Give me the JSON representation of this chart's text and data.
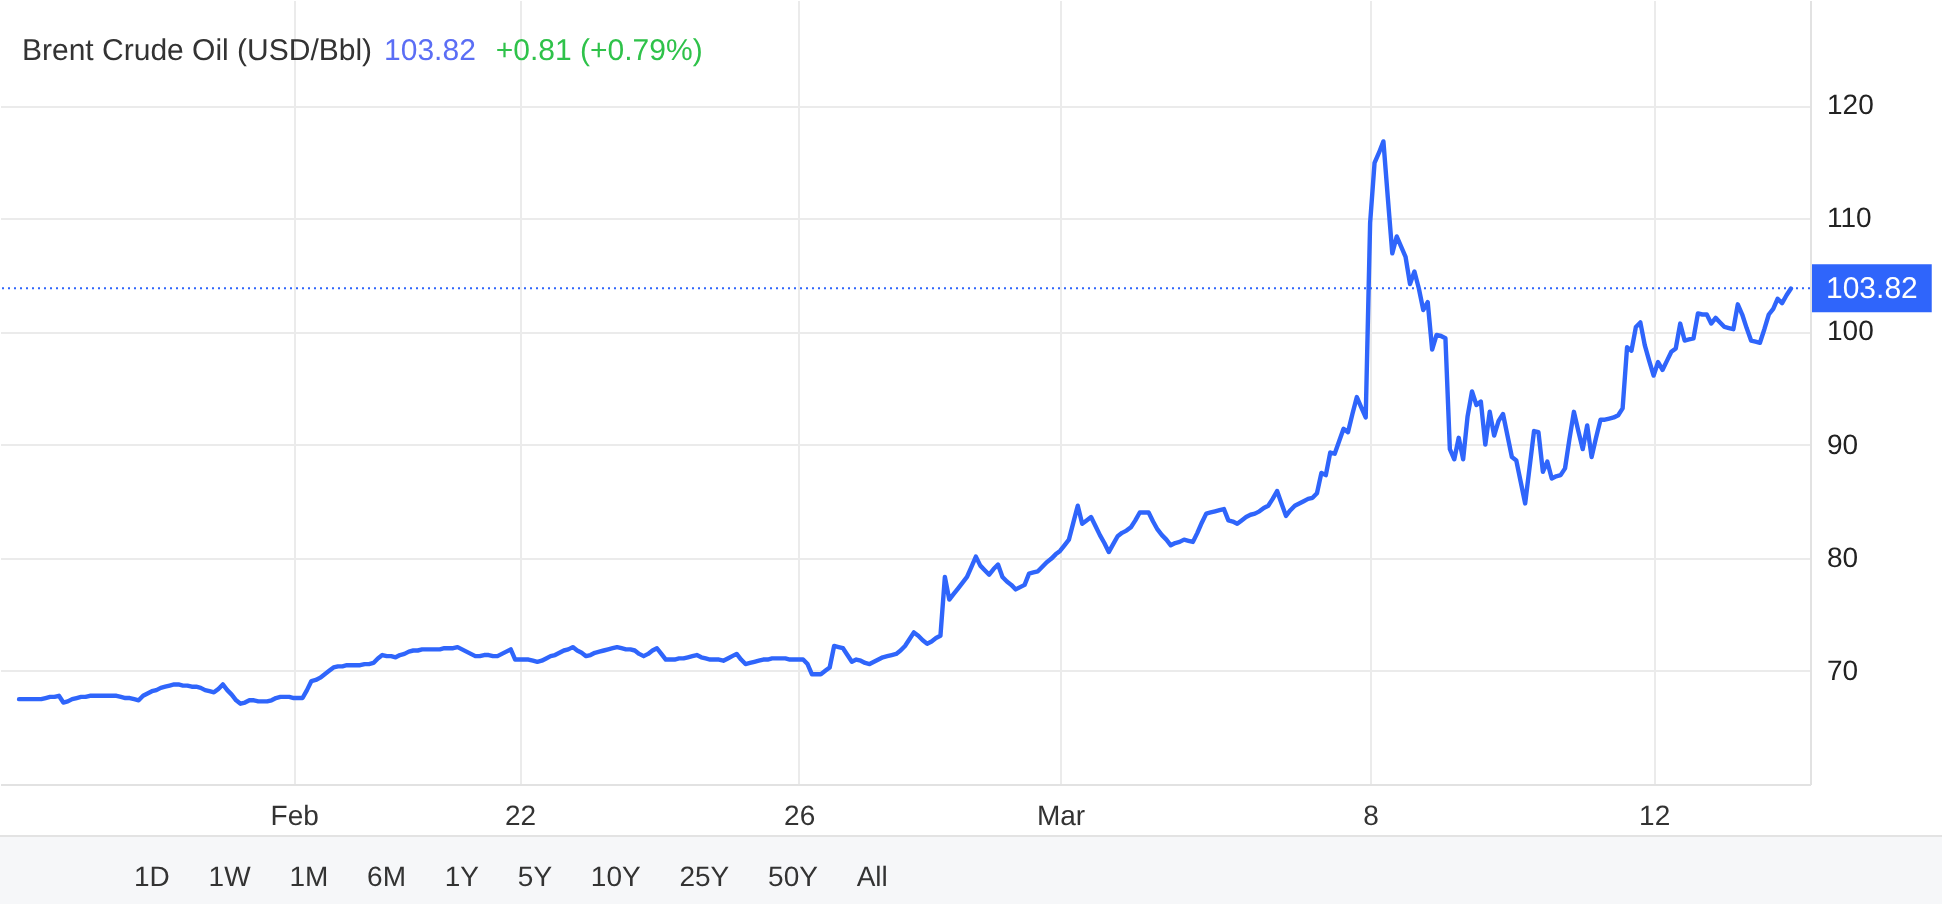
{
  "chart_data": {
    "type": "line",
    "title": "Brent Crude Oil (USD/Bbl)",
    "annotations": [
      "103.82",
      "+0.81 (+0.79%)",
      "1D",
      "1W",
      "1M",
      "6M",
      "1Y",
      "5Y",
      "10Y",
      "25Y",
      "50Y",
      "All"
    ],
    "categories": [
      null,
      null,
      null,
      null,
      null,
      null,
      null,
      null,
      null,
      null,
      null,
      null,
      null,
      null,
      null,
      null,
      null,
      null,
      null,
      null,
      null,
      null,
      null,
      null,
      null,
      null,
      null,
      null,
      null,
      null,
      null,
      null,
      null,
      null,
      null,
      null,
      null,
      null,
      null,
      null,
      null,
      null,
      null,
      null,
      null,
      null,
      null,
      null,
      null,
      null,
      null,
      null,
      null,
      null,
      null,
      null,
      null,
      null,
      null,
      null,
      null,
      null,
      "Feb",
      null,
      null,
      null,
      null,
      null,
      null,
      null,
      null,
      null,
      null,
      null,
      null,
      null,
      null,
      null,
      null,
      null,
      null,
      null,
      null,
      null,
      null,
      null,
      null,
      null,
      null,
      null,
      null,
      null,
      null,
      null,
      null,
      null,
      null,
      null,
      null,
      null,
      null,
      null,
      null,
      null,
      null,
      null,
      null,
      null,
      null,
      null,
      null,
      null,
      null,
      "22",
      null,
      null,
      null,
      null,
      null,
      null,
      null,
      null,
      null,
      null,
      null,
      null,
      null,
      null,
      null,
      null,
      null,
      null,
      null,
      null,
      null,
      null,
      null,
      null,
      null,
      null,
      null,
      null,
      null,
      null,
      null,
      null,
      null,
      null,
      null,
      null,
      null,
      null,
      null,
      null,
      null,
      null,
      null,
      null,
      null,
      null,
      null,
      null,
      null,
      null,
      null,
      null,
      null,
      null,
      null,
      null,
      null,
      null,
      null,
      null,
      null,
      null,
      "26",
      null,
      null,
      null,
      null,
      null,
      null,
      null,
      null,
      null,
      null,
      null,
      null,
      null,
      null,
      null,
      null,
      null,
      null,
      null,
      null,
      null,
      null,
      null,
      null,
      null,
      null,
      null,
      null,
      null,
      null,
      null,
      null,
      null,
      null,
      null,
      null,
      null,
      null,
      null,
      null,
      null,
      null,
      null,
      null,
      null,
      null,
      null,
      null,
      null,
      null,
      null,
      null,
      null,
      null,
      null,
      null,
      null,
      null,
      "Mar",
      null,
      null,
      null,
      null,
      null,
      null,
      null,
      null,
      null,
      null,
      null,
      null,
      null,
      null,
      null,
      null,
      null,
      null,
      null,
      null,
      null,
      null,
      null,
      null,
      null,
      null,
      null,
      null,
      null,
      null,
      null,
      null,
      null,
      null,
      null,
      null,
      null,
      null,
      null,
      null,
      null,
      null,
      null,
      null,
      null,
      null,
      null,
      null,
      null,
      null,
      null,
      null,
      null,
      null,
      null,
      null,
      null,
      null,
      null,
      null,
      null,
      null,
      null,
      null,
      null,
      null,
      null,
      null,
      null,
      "8",
      null,
      null,
      null,
      null,
      null,
      null,
      null,
      null,
      null,
      null,
      null,
      null,
      null,
      null,
      null,
      null,
      null,
      null,
      null,
      null,
      null,
      null,
      null,
      null,
      null,
      null,
      null,
      null,
      null,
      null,
      null,
      null,
      null,
      null,
      null,
      null,
      null,
      null,
      null,
      null,
      null,
      null,
      null,
      null,
      null,
      null,
      null,
      null,
      null,
      null,
      null,
      null,
      null,
      null,
      null,
      null,
      null,
      null,
      null,
      null,
      null,
      null,
      null,
      "12",
      null,
      null,
      null,
      null,
      null,
      null,
      null,
      null,
      null,
      null,
      null,
      null,
      null,
      null,
      null,
      null,
      null,
      null,
      null,
      null,
      null,
      null,
      null,
      null,
      null,
      null,
      null,
      null,
      null,
      null,
      null
    ],
    "series": [
      {
        "color": "#2f65fb",
        "values": [
          67.5,
          67.5,
          67.5,
          67.5,
          67.5,
          67.5,
          67.6,
          67.7,
          67.7,
          67.8,
          67.2,
          67.3,
          67.5,
          67.6,
          67.7,
          67.7,
          67.8,
          67.8,
          67.8,
          67.8,
          67.8,
          67.8,
          67.8,
          67.7,
          67.6,
          67.6,
          67.5,
          67.4,
          67.8,
          68.0,
          68.2,
          68.3,
          68.5,
          68.6,
          68.7,
          68.8,
          68.8,
          68.7,
          68.7,
          68.6,
          68.6,
          68.5,
          68.3,
          68.2,
          68.1,
          68.4,
          68.8,
          68.3,
          67.9,
          67.4,
          67.1,
          67.2,
          67.4,
          67.4,
          67.3,
          67.3,
          67.3,
          67.4,
          67.6,
          67.7,
          67.7,
          67.7,
          67.6,
          67.6,
          67.6,
          68.3,
          69.1,
          69.2,
          69.4,
          69.7,
          70.0,
          70.3,
          70.4,
          70.4,
          70.5,
          70.5,
          70.5,
          70.5,
          70.6,
          70.6,
          70.7,
          71.1,
          71.4,
          71.3,
          71.3,
          71.2,
          71.4,
          71.5,
          71.7,
          71.8,
          71.8,
          71.9,
          71.9,
          71.9,
          71.9,
          71.9,
          72.0,
          72.0,
          72.0,
          72.1,
          71.9,
          71.7,
          71.5,
          71.3,
          71.3,
          71.4,
          71.4,
          71.3,
          71.3,
          71.5,
          71.7,
          71.9,
          71.0,
          71.0,
          71.0,
          71.0,
          70.9,
          70.8,
          70.9,
          71.1,
          71.3,
          71.4,
          71.6,
          71.8,
          71.9,
          72.1,
          71.8,
          71.6,
          71.3,
          71.4,
          71.6,
          71.7,
          71.8,
          71.9,
          72.0,
          72.1,
          72.0,
          71.9,
          71.9,
          71.8,
          71.5,
          71.3,
          71.5,
          71.8,
          72.0,
          71.5,
          71.0,
          71.0,
          71.0,
          71.1,
          71.1,
          71.2,
          71.3,
          71.4,
          71.2,
          71.1,
          71.0,
          71.0,
          71.0,
          70.9,
          71.1,
          71.3,
          71.5,
          71.0,
          70.6,
          70.7,
          70.8,
          70.9,
          71.0,
          71.0,
          71.1,
          71.1,
          71.1,
          71.1,
          71.0,
          71.0,
          71.0,
          71.0,
          70.6,
          69.7,
          69.7,
          69.7,
          70.0,
          70.3,
          72.2,
          72.1,
          72.0,
          71.4,
          70.8,
          71.0,
          70.9,
          70.7,
          70.6,
          70.8,
          71.0,
          71.2,
          71.3,
          71.4,
          71.5,
          71.8,
          72.2,
          72.8,
          73.4,
          73.1,
          72.7,
          72.4,
          72.6,
          72.9,
          73.1,
          78.3,
          76.3,
          76.8,
          77.3,
          77.8,
          78.3,
          79.2,
          80.1,
          79.3,
          78.9,
          78.5,
          79.0,
          79.4,
          78.3,
          77.9,
          77.6,
          77.2,
          77.4,
          77.6,
          78.6,
          78.7,
          78.8,
          79.2,
          79.6,
          79.9,
          80.3,
          80.6,
          81.1,
          81.6,
          83.1,
          84.6,
          83.0,
          83.3,
          83.6,
          82.8,
          82.0,
          81.3,
          80.5,
          81.2,
          81.9,
          82.2,
          82.4,
          82.7,
          83.3,
          84.0,
          84.0,
          84.0,
          83.2,
          82.5,
          82.0,
          81.6,
          81.1,
          81.3,
          81.4,
          81.6,
          81.5,
          81.4,
          82.2,
          83.1,
          83.9,
          84.0,
          84.1,
          84.2,
          84.3,
          83.3,
          83.2,
          83.0,
          83.3,
          83.6,
          83.8,
          83.9,
          84.1,
          84.4,
          84.6,
          85.2,
          85.9,
          84.8,
          83.7,
          84.2,
          84.6,
          84.8,
          85.0,
          85.2,
          85.3,
          85.7,
          87.5,
          87.3,
          89.3,
          89.2,
          90.3,
          91.4,
          91.1,
          92.7,
          94.2,
          93.3,
          92.4,
          109.6,
          114.9,
          115.8,
          116.8,
          111.8,
          106.9,
          108.4,
          107.5,
          106.6,
          104.2,
          105.3,
          103.8,
          101.9,
          102.6,
          98.4,
          99.7,
          99.6,
          99.4,
          89.6,
          88.7,
          90.6,
          88.7,
          92.5,
          94.7,
          93.5,
          93.8,
          90.0,
          92.9,
          90.8,
          92.1,
          92.7,
          90.8,
          88.9,
          88.6,
          86.7,
          84.8,
          88.0,
          91.2,
          91.1,
          87.6,
          88.5,
          87.0,
          87.2,
          87.3,
          87.9,
          90.5,
          92.9,
          91.2,
          89.6,
          91.7,
          88.9,
          90.6,
          92.2,
          92.2,
          92.3,
          92.4,
          92.6,
          93.2,
          98.6,
          98.3,
          100.4,
          100.8,
          98.8,
          97.4,
          96.1,
          97.3,
          96.6,
          97.4,
          98.2,
          98.5,
          100.7,
          99.2,
          99.3,
          99.4,
          101.6,
          101.5,
          101.5,
          100.7,
          101.2,
          100.8,
          100.4,
          100.3,
          100.2,
          102.4,
          101.5,
          100.3,
          99.2,
          99.1,
          99.0,
          100.2,
          101.5,
          102.0,
          102.9,
          102.5,
          103.2,
          103.8
        ]
      }
    ],
    "ylim": [
      60,
      129.3
    ],
    "yticks": [
      70,
      80,
      90,
      100,
      110,
      120
    ],
    "grid": true,
    "line_style": "solid",
    "ref_lines": [
      {
        "axis": "y",
        "value": 103.82,
        "label": "103.82",
        "color": "#2f65fb",
        "line_style": "dotted"
      }
    ]
  }
}
